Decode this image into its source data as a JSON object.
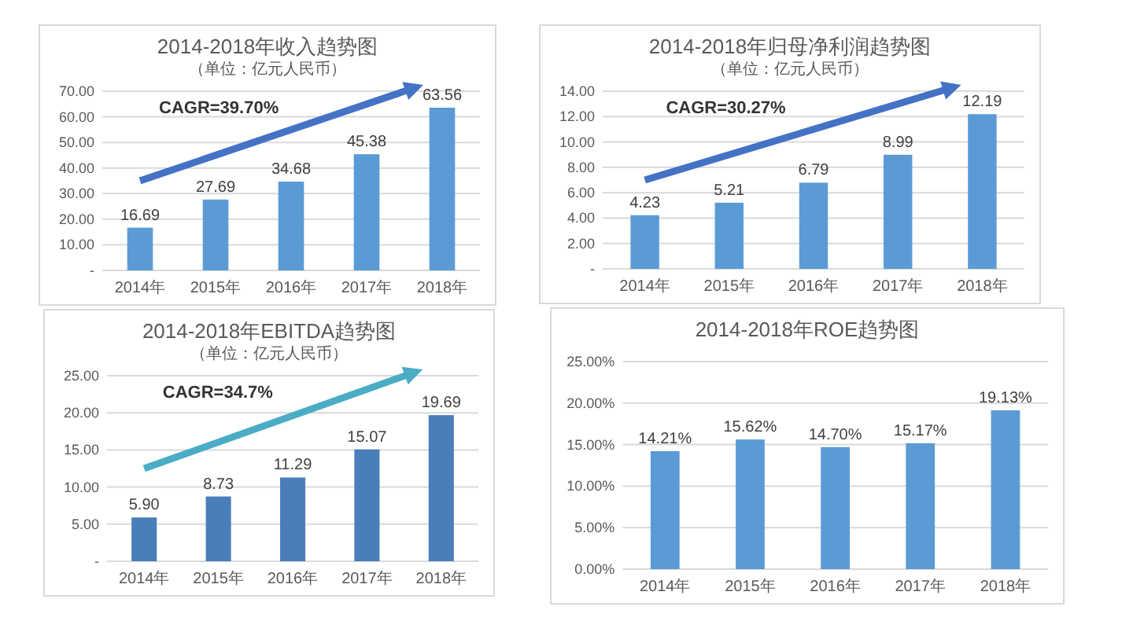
{
  "chart_data": [
    {
      "type": "bar",
      "title": "2014-2018年收入趋势图",
      "subtitle": "（单位：亿元人民币）",
      "categories": [
        "2014年",
        "2015年",
        "2016年",
        "2017年",
        "2018年"
      ],
      "values": [
        16.69,
        27.69,
        34.68,
        45.38,
        63.56
      ],
      "value_labels": [
        "16.69",
        "27.69",
        "34.68",
        "45.38",
        "63.56"
      ],
      "color": "#5b9bd5",
      "ylim": [
        0,
        70
      ],
      "yticks": [
        {
          "value": 0,
          "label": "-"
        },
        {
          "value": 10,
          "label": "10.00"
        },
        {
          "value": 20,
          "label": "20.00"
        },
        {
          "value": 30,
          "label": "30.00"
        },
        {
          "value": 40,
          "label": "40.00"
        },
        {
          "value": 50,
          "label": "50.00"
        },
        {
          "value": 60,
          "label": "60.00"
        },
        {
          "value": 70,
          "label": "70.00"
        }
      ],
      "grid": "y",
      "annotations": [
        "CAGR=39.70%"
      ]
    },
    {
      "type": "bar",
      "title": "2014-2018年归母净利润趋势图",
      "subtitle": "（单位：亿元人民币）",
      "categories": [
        "2014年",
        "2015年",
        "2016年",
        "2017年",
        "2018年"
      ],
      "values": [
        4.23,
        5.21,
        6.79,
        8.99,
        12.19
      ],
      "value_labels": [
        "4.23",
        "5.21",
        "6.79",
        "8.99",
        "12.19"
      ],
      "color": "#5b9bd5",
      "ylim": [
        0,
        14
      ],
      "yticks": [
        {
          "value": 0,
          "label": "-"
        },
        {
          "value": 2,
          "label": "2.00"
        },
        {
          "value": 4,
          "label": "4.00"
        },
        {
          "value": 6,
          "label": "6.00"
        },
        {
          "value": 8,
          "label": "8.00"
        },
        {
          "value": 10,
          "label": "10.00"
        },
        {
          "value": 12,
          "label": "12.00"
        },
        {
          "value": 14,
          "label": "14.00"
        }
      ],
      "grid": "y",
      "annotations": [
        "CAGR=30.27%"
      ]
    },
    {
      "type": "bar",
      "title": "2014-2018年EBITDA趋势图",
      "subtitle": "（单位：亿元人民币）",
      "categories": [
        "2014年",
        "2015年",
        "2016年",
        "2017年",
        "2018年"
      ],
      "values": [
        5.9,
        8.73,
        11.29,
        15.07,
        19.69
      ],
      "value_labels": [
        "5.90",
        "8.73",
        "11.29",
        "15.07",
        "19.69"
      ],
      "color": "#4a7ebb",
      "ylim": [
        0,
        25
      ],
      "yticks": [
        {
          "value": 0,
          "label": "-"
        },
        {
          "value": 5,
          "label": "5.00"
        },
        {
          "value": 10,
          "label": "10.00"
        },
        {
          "value": 15,
          "label": "15.00"
        },
        {
          "value": 20,
          "label": "20.00"
        },
        {
          "value": 25,
          "label": "25.00"
        }
      ],
      "grid": "y",
      "annotations": [
        "CAGR=34.7%"
      ]
    },
    {
      "type": "bar",
      "title": "2014-2018年ROE趋势图",
      "categories": [
        "2014年",
        "2015年",
        "2016年",
        "2017年",
        "2018年"
      ],
      "values": [
        14.21,
        15.62,
        14.7,
        15.17,
        19.13
      ],
      "value_labels": [
        "14.21%",
        "15.62%",
        "14.70%",
        "15.17%",
        "19.13%"
      ],
      "color": "#5b9bd5",
      "ylim": [
        0,
        25
      ],
      "yticks": [
        {
          "value": 0,
          "label": "0.00%"
        },
        {
          "value": 5,
          "label": "5.00%"
        },
        {
          "value": 10,
          "label": "10.00%"
        },
        {
          "value": 15,
          "label": "15.00%"
        },
        {
          "value": 20,
          "label": "20.00%"
        },
        {
          "value": 25,
          "label": "25.00%"
        }
      ],
      "grid": "y"
    }
  ]
}
